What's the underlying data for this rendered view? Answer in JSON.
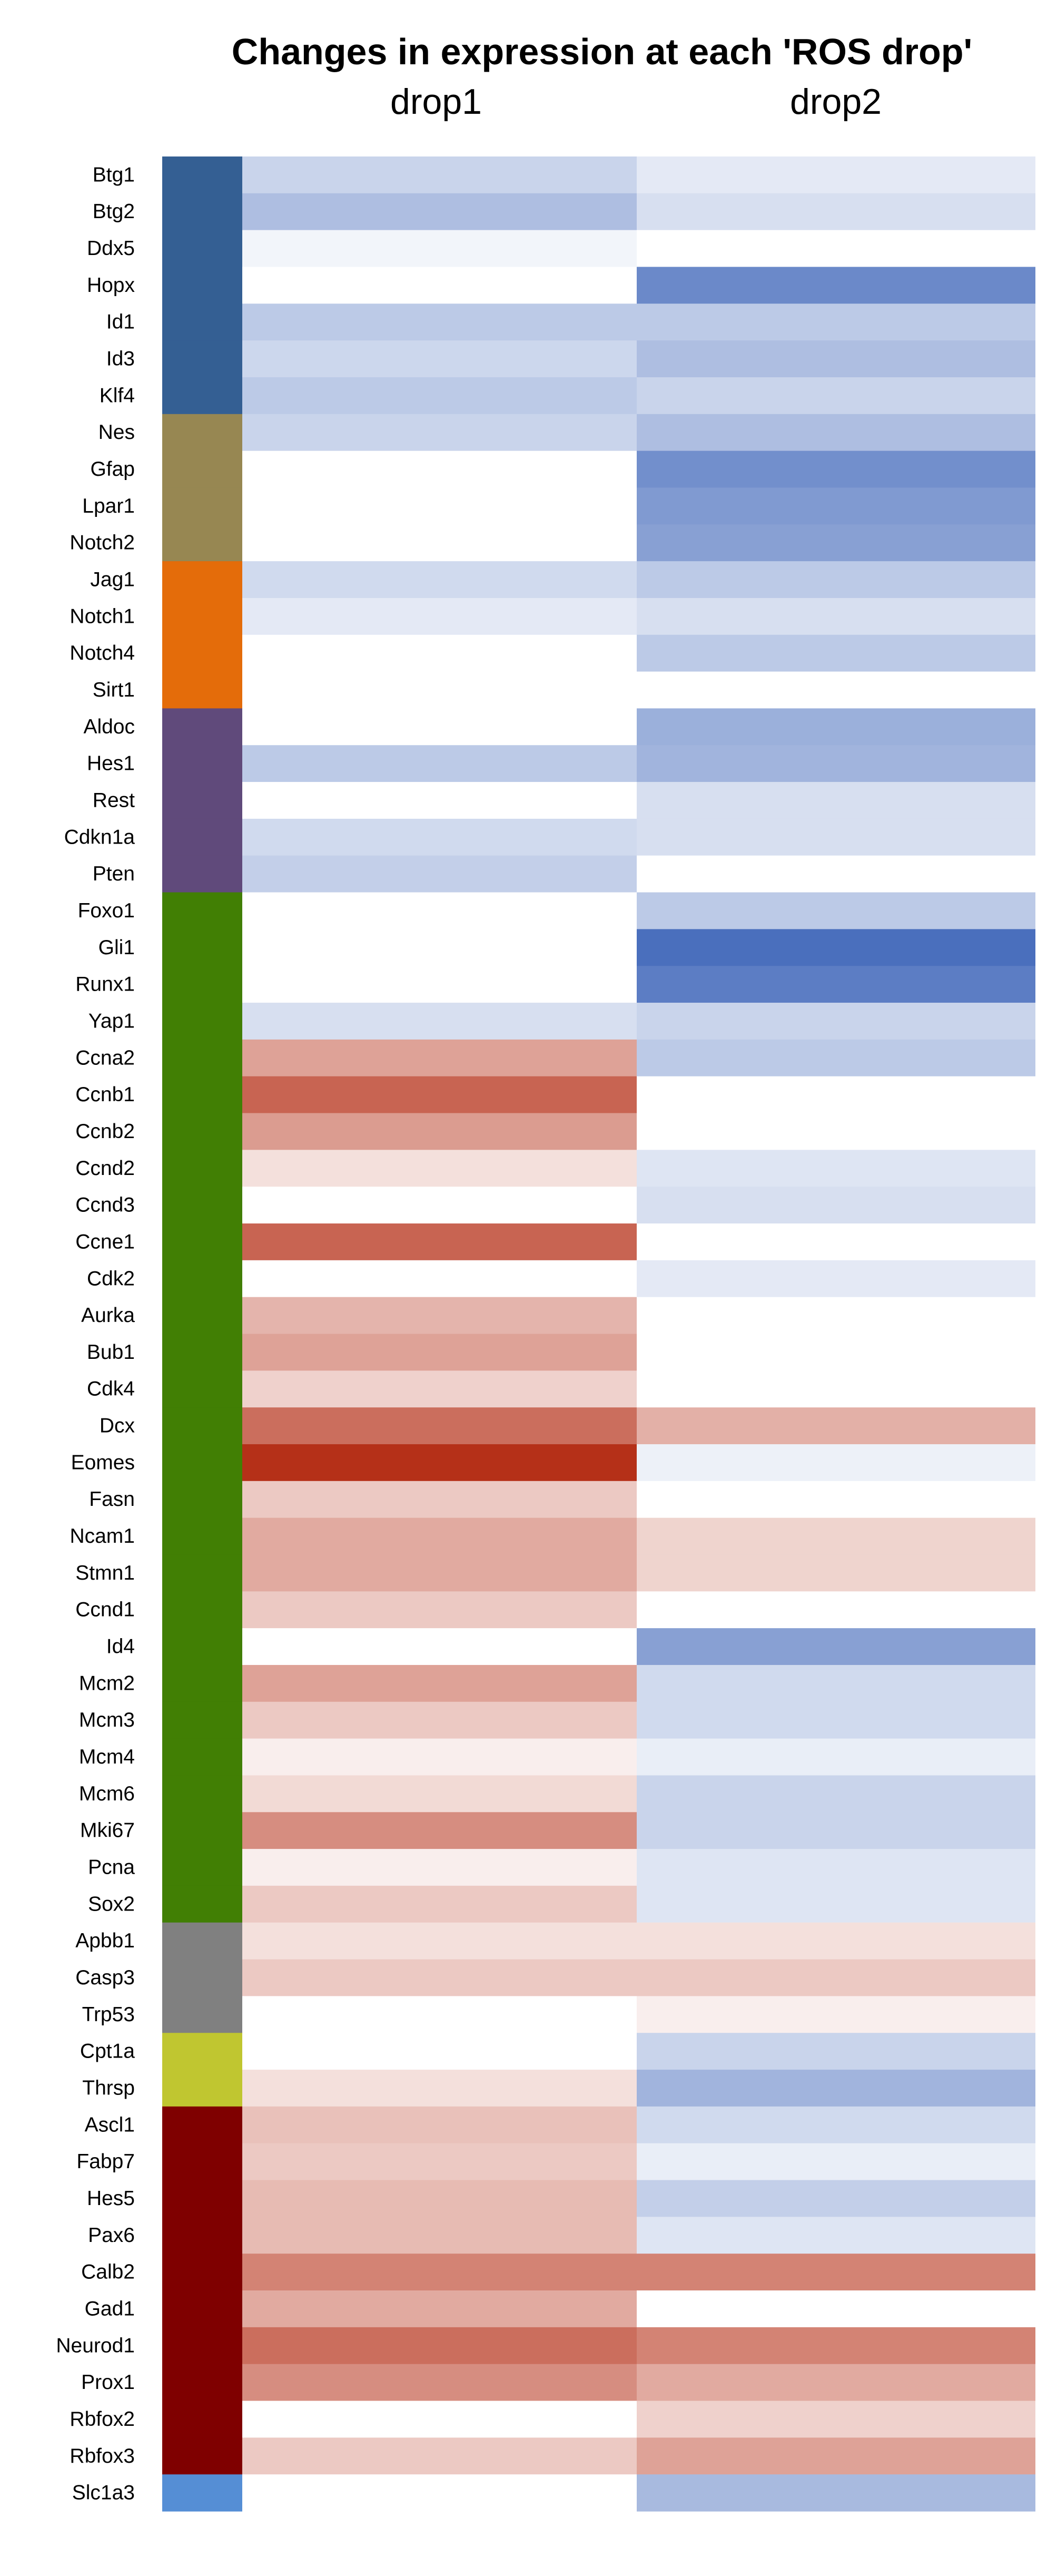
{
  "chart_data": {
    "type": "heatmap",
    "title": "Changes in expression at each 'ROS drop'",
    "columns": [
      "drop1",
      "drop2"
    ],
    "rows": [
      {
        "gene": "Btg1",
        "group": "g1",
        "drop1": -0.3,
        "drop2": -0.15
      },
      {
        "gene": "Btg2",
        "group": "g1",
        "drop1": -0.45,
        "drop2": -0.22
      },
      {
        "gene": "Ddx5",
        "group": "g1",
        "drop1": -0.07,
        "drop2": 0
      },
      {
        "gene": "Hopx",
        "group": "g1",
        "drop1": 0,
        "drop2": -0.82
      },
      {
        "gene": "Id1",
        "group": "g1",
        "drop1": -0.37,
        "drop2": -0.37
      },
      {
        "gene": "Id3",
        "group": "g1",
        "drop1": -0.28,
        "drop2": -0.45
      },
      {
        "gene": "Klf4",
        "group": "g1",
        "drop1": -0.37,
        "drop2": -0.3
      },
      {
        "gene": "Nes",
        "group": "g2",
        "drop1": -0.3,
        "drop2": -0.45
      },
      {
        "gene": "Gfap",
        "group": "g2",
        "drop1": 0,
        "drop2": -0.78
      },
      {
        "gene": "Lpar1",
        "group": "g2",
        "drop1": 0,
        "drop2": -0.7
      },
      {
        "gene": "Notch2",
        "group": "g2",
        "drop1": 0,
        "drop2": -0.66
      },
      {
        "gene": "Jag1",
        "group": "g3",
        "drop1": -0.26,
        "drop2": -0.37
      },
      {
        "gene": "Notch1",
        "group": "g3",
        "drop1": -0.15,
        "drop2": -0.22
      },
      {
        "gene": "Notch4",
        "group": "g3",
        "drop1": 0,
        "drop2": -0.37
      },
      {
        "gene": "Sirt1",
        "group": "g3",
        "drop1": 0,
        "drop2": 0
      },
      {
        "gene": "Aldoc",
        "group": "g4",
        "drop1": 0,
        "drop2": -0.55
      },
      {
        "gene": "Hes1",
        "group": "g4",
        "drop1": -0.37,
        "drop2": -0.52
      },
      {
        "gene": "Rest",
        "group": "g4",
        "drop1": 0,
        "drop2": -0.22
      },
      {
        "gene": "Cdkn1a",
        "group": "g4",
        "drop1": -0.26,
        "drop2": -0.22
      },
      {
        "gene": "Pten",
        "group": "g4",
        "drop1": -0.33,
        "drop2": 0
      },
      {
        "gene": "Foxo1",
        "group": "g5",
        "drop1": 0,
        "drop2": -0.37
      },
      {
        "gene": "Gli1",
        "group": "g5",
        "drop1": 0,
        "drop2": -1.0
      },
      {
        "gene": "Runx1",
        "group": "g5",
        "drop1": 0,
        "drop2": -0.9
      },
      {
        "gene": "Yap1",
        "group": "g5",
        "drop1": -0.22,
        "drop2": -0.3
      },
      {
        "gene": "Ccna2",
        "group": "g5",
        "drop1": 0.45,
        "drop2": -0.37
      },
      {
        "gene": "Ccnb1",
        "group": "g5",
        "drop1": 0.75,
        "drop2": 0
      },
      {
        "gene": "Ccnb2",
        "group": "g5",
        "drop1": 0.48,
        "drop2": 0
      },
      {
        "gene": "Ccnd2",
        "group": "g5",
        "drop1": 0.15,
        "drop2": -0.18
      },
      {
        "gene": "Ccnd3",
        "group": "g5",
        "drop1": 0,
        "drop2": -0.22
      },
      {
        "gene": "Ccne1",
        "group": "g5",
        "drop1": 0.75,
        "drop2": 0
      },
      {
        "gene": "Cdk2",
        "group": "g5",
        "drop1": 0,
        "drop2": -0.15
      },
      {
        "gene": "Aurka",
        "group": "g5",
        "drop1": 0.36,
        "drop2": 0
      },
      {
        "gene": "Bub1",
        "group": "g5",
        "drop1": 0.45,
        "drop2": 0
      },
      {
        "gene": "Cdk4",
        "group": "g5",
        "drop1": 0.22,
        "drop2": 0
      },
      {
        "gene": "Dcx",
        "group": "g5",
        "drop1": 0.7,
        "drop2": 0.38
      },
      {
        "gene": "Eomes",
        "group": "g5",
        "drop1": 1.0,
        "drop2": -0.1
      },
      {
        "gene": "Fasn",
        "group": "g5",
        "drop1": 0.26,
        "drop2": 0
      },
      {
        "gene": "Ncam1",
        "group": "g5",
        "drop1": 0.41,
        "drop2": 0.21
      },
      {
        "gene": "Stmn1",
        "group": "g5",
        "drop1": 0.41,
        "drop2": 0.21
      },
      {
        "gene": "Ccnd1",
        "group": "g5",
        "drop1": 0.26,
        "drop2": 0
      },
      {
        "gene": "Id4",
        "group": "g5",
        "drop1": 0,
        "drop2": -0.66
      },
      {
        "gene": "Mcm2",
        "group": "g5",
        "drop1": 0.45,
        "drop2": -0.26
      },
      {
        "gene": "Mcm3",
        "group": "g5",
        "drop1": 0.26,
        "drop2": -0.26
      },
      {
        "gene": "Mcm4",
        "group": "g5",
        "drop1": 0.08,
        "drop2": -0.12
      },
      {
        "gene": "Mcm6",
        "group": "g5",
        "drop1": 0.18,
        "drop2": -0.3
      },
      {
        "gene": "Mki67",
        "group": "g5",
        "drop1": 0.55,
        "drop2": -0.3
      },
      {
        "gene": "Pcna",
        "group": "g5",
        "drop1": 0.08,
        "drop2": -0.18
      },
      {
        "gene": "Sox2",
        "group": "g5",
        "drop1": 0.26,
        "drop2": -0.18
      },
      {
        "gene": "Apbb1",
        "group": "g6",
        "drop1": 0.15,
        "drop2": 0.15
      },
      {
        "gene": "Casp3",
        "group": "g6",
        "drop1": 0.26,
        "drop2": 0.26
      },
      {
        "gene": "Trp53",
        "group": "g6",
        "drop1": 0,
        "drop2": 0.08
      },
      {
        "gene": "Cpt1a",
        "group": "g7",
        "drop1": 0,
        "drop2": -0.3
      },
      {
        "gene": "Thrsp",
        "group": "g7",
        "drop1": 0.15,
        "drop2": -0.52
      },
      {
        "gene": "Ascl1",
        "group": "g8",
        "drop1": 0.3,
        "drop2": -0.26
      },
      {
        "gene": "Fabp7",
        "group": "g8",
        "drop1": 0.26,
        "drop2": -0.12
      },
      {
        "gene": "Hes5",
        "group": "g8",
        "drop1": 0.33,
        "drop2": -0.33
      },
      {
        "gene": "Pax6",
        "group": "g8",
        "drop1": 0.33,
        "drop2": -0.18
      },
      {
        "gene": "Calb2",
        "group": "g8",
        "drop1": 0.6,
        "drop2": 0.6
      },
      {
        "gene": "Gad1",
        "group": "g8",
        "drop1": 0.41,
        "drop2": 0
      },
      {
        "gene": "Neurod1",
        "group": "g8",
        "drop1": 0.7,
        "drop2": 0.6
      },
      {
        "gene": "Prox1",
        "group": "g8",
        "drop1": 0.55,
        "drop2": 0.41
      },
      {
        "gene": "Rbfox2",
        "group": "g8",
        "drop1": 0,
        "drop2": 0.22
      },
      {
        "gene": "Rbfox3",
        "group": "g8",
        "drop1": 0.26,
        "drop2": 0.45
      },
      {
        "gene": "Slc1a3",
        "group": "g9",
        "drop1": 0,
        "drop2": -0.48
      }
    ],
    "group_colors": {
      "g1": "#345f93",
      "g2": "#978752",
      "g3": "#e46c0a",
      "g4": "#604a7b",
      "g5": "#417f04",
      "g6": "#808080",
      "g7": "#c0c630",
      "g8": "#7f0000",
      "g9": "#558ed5"
    },
    "color_scale": {
      "negative_max": "#4a6fbd",
      "zero": "#ffffff",
      "positive_max": "#b53018",
      "value_range": [
        -1,
        1
      ]
    }
  }
}
